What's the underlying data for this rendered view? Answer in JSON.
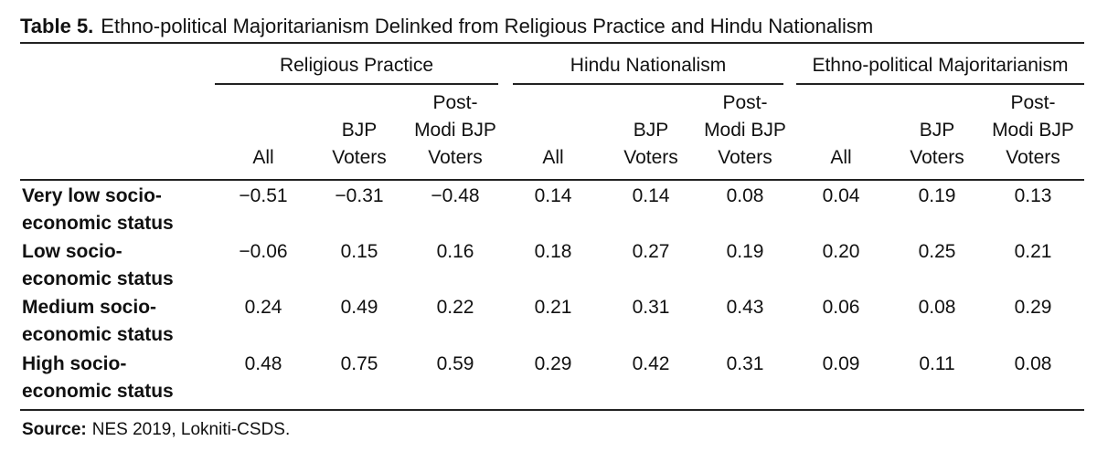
{
  "table": {
    "label": "Table 5.",
    "title": "Ethno-political Majoritarianism Delinked from Religious Practice and Hindu Nationalism",
    "groups": [
      {
        "label": "Religious Practice"
      },
      {
        "label": "Hindu Nationalism"
      },
      {
        "label": "Ethno-political Majoritarianism"
      }
    ],
    "subheaders": [
      [
        "All"
      ],
      [
        "BJP",
        "Voters"
      ],
      [
        "Post-",
        "Modi BJP",
        "Voters"
      ],
      [
        "All"
      ],
      [
        "BJP",
        "Voters"
      ],
      [
        "Post-",
        "Modi BJP",
        "Voters"
      ],
      [
        "All"
      ],
      [
        "BJP",
        "Voters"
      ],
      [
        "Post-",
        "Modi BJP",
        "Voters"
      ]
    ],
    "rows": [
      {
        "label": [
          "Very low socio-",
          "economic status"
        ],
        "values": [
          "−0.51",
          "−0.31",
          "−0.48",
          "0.14",
          "0.14",
          "0.08",
          "0.04",
          "0.19",
          "0.13"
        ]
      },
      {
        "label": [
          "Low socio-",
          "economic status"
        ],
        "values": [
          "−0.06",
          "0.15",
          "0.16",
          "0.18",
          "0.27",
          "0.19",
          "0.20",
          "0.25",
          "0.21"
        ]
      },
      {
        "label": [
          "Medium socio-",
          "economic status"
        ],
        "values": [
          "0.24",
          "0.49",
          "0.22",
          "0.21",
          "0.31",
          "0.43",
          "0.06",
          "0.08",
          "0.29"
        ]
      },
      {
        "label": [
          "High socio-",
          "economic status"
        ],
        "values": [
          "0.48",
          "0.75",
          "0.59",
          "0.29",
          "0.42",
          "0.31",
          "0.09",
          "0.11",
          "0.08"
        ]
      }
    ],
    "source_label": "Source:",
    "source_text": "NES 2019, Lokniti-CSDS."
  }
}
